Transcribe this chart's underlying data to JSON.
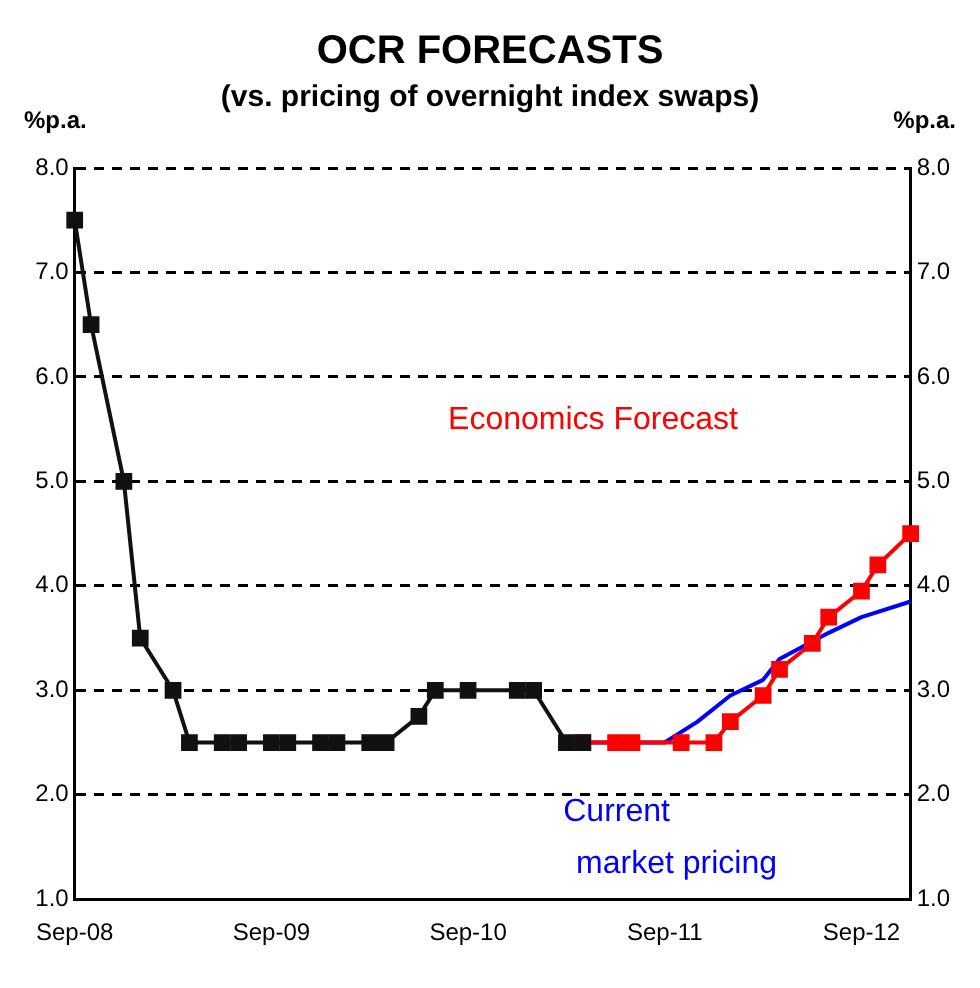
{
  "chart_data": {
    "type": "line",
    "title": "OCR FORECASTS",
    "subtitle": "(vs. pricing of overnight index swaps)",
    "ylabel": "%p.a.",
    "y2label": "%p.a.",
    "categories": [
      "Sep-08",
      null,
      null,
      null,
      null,
      null,
      null,
      null,
      null,
      null,
      null,
      null,
      "Sep-09",
      null,
      null,
      null,
      null,
      null,
      null,
      null,
      null,
      null,
      null,
      null,
      "Sep-10",
      null,
      null,
      null,
      null,
      null,
      null,
      null,
      null,
      null,
      null,
      null,
      "Sep-11",
      null,
      null,
      null,
      null,
      null,
      null,
      null,
      null,
      null,
      null,
      null,
      "Sep-12",
      null,
      null,
      null
    ],
    "series": [
      {
        "color": "#111111",
        "marker": "square",
        "values": [
          7.5,
          6.5,
          null,
          5.0,
          3.5,
          null,
          3.0,
          2.5,
          null,
          2.5,
          2.5,
          null,
          2.5,
          2.5,
          null,
          2.5,
          2.5,
          null,
          2.5,
          2.5,
          null,
          2.75,
          3.0,
          null,
          3.0,
          null,
          null,
          3.0,
          3.0,
          null,
          2.5,
          2.5,
          null,
          null,
          null,
          null,
          null,
          null,
          null,
          null,
          null,
          null,
          null,
          null,
          null,
          null,
          null,
          null,
          null,
          null,
          null,
          null
        ]
      },
      {
        "name": "Economics Forecast",
        "color": "#ff0000",
        "marker": "square",
        "values": [
          null,
          null,
          null,
          null,
          null,
          null,
          null,
          null,
          null,
          null,
          null,
          null,
          null,
          null,
          null,
          null,
          null,
          null,
          null,
          null,
          null,
          null,
          null,
          null,
          null,
          null,
          null,
          null,
          null,
          null,
          null,
          2.5,
          null,
          2.5,
          2.5,
          null,
          null,
          2.5,
          null,
          2.5,
          2.7,
          null,
          2.95,
          3.2,
          null,
          3.45,
          3.7,
          null,
          3.95,
          4.2,
          null,
          4.5
        ]
      },
      {
        "name": "Current market pricing",
        "color": "#0000ff",
        "marker": "none",
        "values": [
          null,
          null,
          null,
          null,
          null,
          null,
          null,
          null,
          null,
          null,
          null,
          null,
          null,
          null,
          null,
          null,
          null,
          null,
          null,
          null,
          null,
          null,
          null,
          null,
          null,
          null,
          null,
          null,
          null,
          null,
          null,
          2.5,
          null,
          2.5,
          null,
          null,
          2.5,
          null,
          2.7,
          null,
          2.95,
          null,
          3.1,
          3.3,
          null,
          null,
          3.55,
          null,
          3.7,
          null,
          null,
          3.85
        ]
      }
    ],
    "ylim": [
      1,
      8
    ],
    "yticks": [
      {
        "value": 1,
        "label": "1.0"
      },
      {
        "value": 2,
        "label": "2.0"
      },
      {
        "value": 3,
        "label": "3.0"
      },
      {
        "value": 4,
        "label": "4.0"
      },
      {
        "value": 5,
        "label": "5.0"
      },
      {
        "value": 6,
        "label": "6.0"
      },
      {
        "value": 7,
        "label": "7.0"
      },
      {
        "value": 8,
        "label": "8.0"
      }
    ],
    "y2lim": [
      1,
      8
    ],
    "y2ticks": [
      {
        "value": 1,
        "label": "1.0"
      },
      {
        "value": 2,
        "label": "2.0"
      },
      {
        "value": 3,
        "label": "3.0"
      },
      {
        "value": 4,
        "label": "4.0"
      },
      {
        "value": 5,
        "label": "5.0"
      },
      {
        "value": 6,
        "label": "6.0"
      },
      {
        "value": 7,
        "label": "7.0"
      },
      {
        "value": 8,
        "label": "8.0"
      }
    ],
    "grid": "y",
    "legend": false,
    "line_style": "solid"
  }
}
